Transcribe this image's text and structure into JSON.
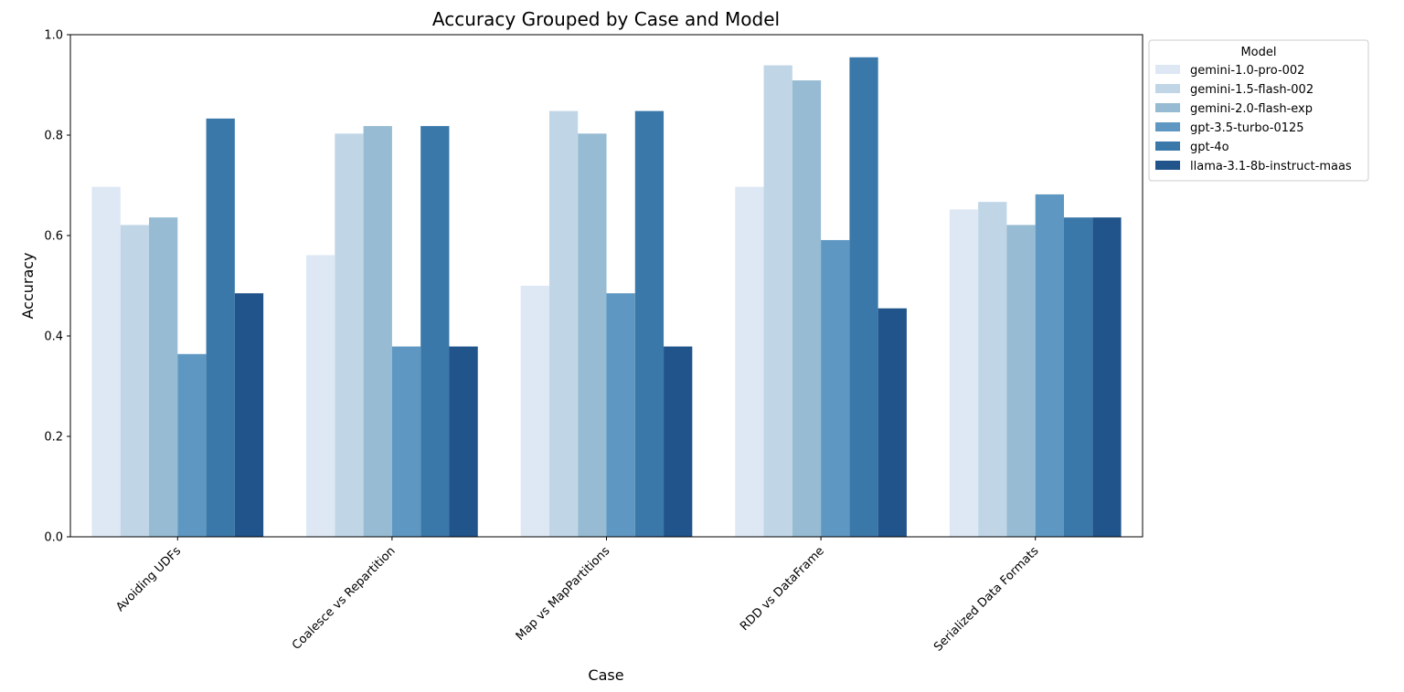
{
  "chart_data": {
    "type": "bar",
    "title": "Accuracy Grouped by Case and Model",
    "xlabel": "Case",
    "ylabel": "Accuracy",
    "ylim": [
      0,
      1.0
    ],
    "yticks": [
      "0.0",
      "0.2",
      "0.4",
      "0.6",
      "0.8",
      "1.0"
    ],
    "grid": false,
    "legend": {
      "title": "Model",
      "placement": "outside-upper-right"
    },
    "categories": [
      "Avoiding UDFs",
      "Coalesce vs Repartition",
      "Map vs MapPartitions",
      "RDD vs DataFrame",
      "Serialized Data Formats"
    ],
    "series": [
      {
        "name": "gemini-1.0-pro-002",
        "color": "#dde8f4",
        "values": [
          0.697,
          0.561,
          0.5,
          0.697,
          0.652
        ]
      },
      {
        "name": "gemini-1.5-flash-002",
        "color": "#c0d6e7",
        "values": [
          0.621,
          0.803,
          0.848,
          0.939,
          0.667
        ]
      },
      {
        "name": "gemini-2.0-flash-exp",
        "color": "#96bbd2",
        "values": [
          0.636,
          0.818,
          0.803,
          0.909,
          0.621
        ]
      },
      {
        "name": "gpt-3.5-turbo-0125",
        "color": "#5e98c2",
        "values": [
          0.364,
          0.379,
          0.485,
          0.591,
          0.682
        ]
      },
      {
        "name": "gpt-4o",
        "color": "#3b78aa",
        "values": [
          0.833,
          0.818,
          0.848,
          0.955,
          0.636
        ]
      },
      {
        "name": "llama-3.1-8b-instruct-maas",
        "color": "#20548b",
        "values": [
          0.485,
          0.379,
          0.379,
          0.455,
          0.636
        ]
      }
    ]
  }
}
